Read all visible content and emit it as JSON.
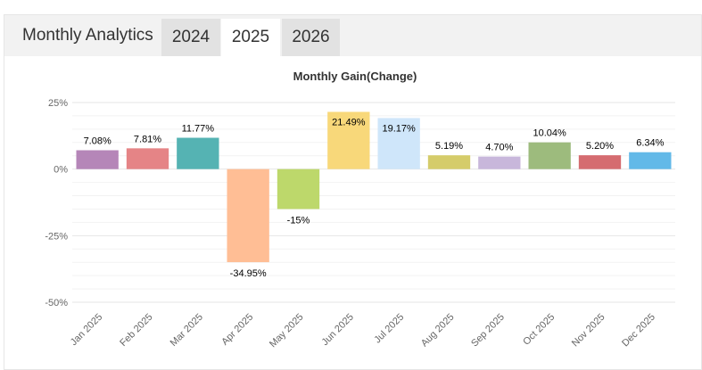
{
  "header": {
    "title": "Monthly Analytics",
    "tabs": [
      {
        "label": "2024",
        "active": false
      },
      {
        "label": "2025",
        "active": true
      },
      {
        "label": "2026",
        "active": false
      }
    ]
  },
  "chart_data": {
    "type": "bar",
    "title": "Monthly Gain(Change)",
    "categories": [
      "Jan 2025",
      "Feb 2025",
      "Mar 2025",
      "Apr 2025",
      "May 2025",
      "Jun 2025",
      "Jul 2025",
      "Aug 2025",
      "Sep 2025",
      "Oct 2025",
      "Nov 2025",
      "Dec 2025"
    ],
    "values": [
      7.08,
      7.81,
      11.77,
      -34.95,
      -15,
      21.49,
      19.17,
      5.19,
      4.7,
      10.04,
      5.2,
      6.34
    ],
    "data_labels": [
      "7.08%",
      "7.81%",
      "11.77%",
      "-34.95%",
      "-15%",
      "21.49%",
      "19.17%",
      "5.19%",
      "4.70%",
      "10.04%",
      "5.20%",
      "6.34%"
    ],
    "colors": [
      "#b586b8",
      "#e58486",
      "#55b3b3",
      "#ffbe95",
      "#bdd86b",
      "#f8d87a",
      "#cfe6fa",
      "#d5cc6a",
      "#c8b7db",
      "#9dbb7d",
      "#d56c70",
      "#62b9e8"
    ],
    "yticks": [
      25,
      0,
      -25,
      -50
    ],
    "ytick_labels": [
      "25%",
      "0%",
      "-25%",
      "-50%"
    ],
    "ylim": [
      -50,
      25
    ],
    "grid": true
  }
}
